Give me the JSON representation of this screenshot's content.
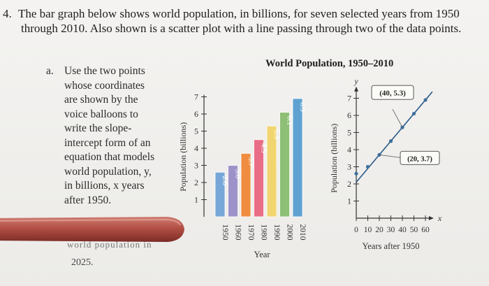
{
  "problem": {
    "number": "4.",
    "line1": "The bar graph below shows world population, in billions, for seven selected years from 1950",
    "line2": "through 2010. Also shown is a scatter plot with a line passing through two of the data points."
  },
  "part_a": {
    "label": "a.",
    "lines": [
      "Use the two points",
      "whose coordinates",
      "are shown by the",
      "voice balloons to",
      "write the slope-",
      "intercept form of an",
      "equation that models",
      "world population, y,",
      "in billions, x years",
      "after 1950."
    ],
    "obscured_text": "world population in",
    "tail": "2025."
  },
  "figure_title": "World Population, 1950–2010",
  "chart_data": [
    {
      "type": "bar",
      "ylabel": "Population (billions)",
      "xlabel": "Year",
      "categories": [
        "1950",
        "1960",
        "1970",
        "1980",
        "1990",
        "2000",
        "2010"
      ],
      "values": [
        2.6,
        3.0,
        3.7,
        4.5,
        5.3,
        6.1,
        6.9
      ],
      "labels": [
        "2.6",
        "3.0",
        "3.7",
        "4.5",
        "5.3",
        "6.1",
        "6.9"
      ],
      "colors": [
        "#77a7d8",
        "#9d93c9",
        "#ef8c3f",
        "#e96d86",
        "#f1d571",
        "#8dbf76",
        "#5fa2d1"
      ],
      "yticks": [
        "1",
        "2",
        "3",
        "4",
        "5",
        "6",
        "7"
      ],
      "ylim": [
        0,
        7
      ]
    },
    {
      "type": "scatter",
      "xlabel": "Years after 1950",
      "ylabel": "Population (billions)",
      "axis_x_name": "x",
      "axis_y_name": "y",
      "x": [
        0,
        10,
        20,
        30,
        40,
        50,
        60
      ],
      "y": [
        2.6,
        3.0,
        3.7,
        4.5,
        5.3,
        6.1,
        6.9
      ],
      "xticks": [
        "0",
        "10",
        "20",
        "30",
        "40",
        "50",
        "60"
      ],
      "yticks": [
        "1",
        "2",
        "3",
        "4",
        "5",
        "6",
        "7"
      ],
      "xlim": [
        0,
        60
      ],
      "ylim": [
        0,
        7
      ],
      "line_through": [
        [
          20,
          3.7
        ],
        [
          40,
          5.3
        ]
      ],
      "balloons": [
        {
          "text": "(40, 5.3)",
          "x": 40,
          "y": 5.3
        },
        {
          "text": "(20, 3.7)",
          "x": 20,
          "y": 3.7
        }
      ],
      "point_color": "#3e6f9e",
      "line_color": "#2e5c8a"
    }
  ]
}
